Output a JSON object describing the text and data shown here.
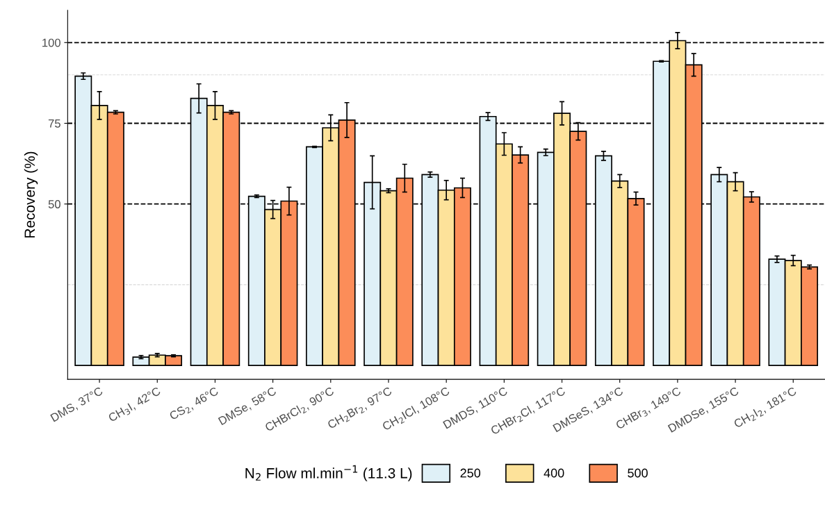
{
  "chart_data": {
    "type": "bar",
    "ylabel": "Recovery (%)",
    "legend_title": "N$_{2}$ Flow ml.min$^{−1}$ (11.3 L)",
    "categories": [
      "DMS, 37°C",
      "CH$_{3}$I, 42°C",
      "CS$_{2}$, 46°C",
      "DMSe, 58°C",
      "CHBrCl$_{2}$, 90°C",
      "CH$_{2}$Br$_{2}$, 97°C",
      "CH$_{2}$ICl, 108°C",
      "DMDS, 110°C",
      "CHBr$_{2}$Cl, 117°C",
      "DMSeS, 134°C",
      "CHBr$_{3}$, 149°C",
      "DMDSe, 155°C",
      "CH$_{2}$I$_{2}$, 181°C"
    ],
    "series": [
      {
        "name": "250",
        "color": "#dff0f7",
        "values": [
          89.6,
          2.6,
          82.7,
          52.4,
          67.7,
          56.7,
          59.1,
          77.1,
          66.0,
          64.9,
          94.2,
          59.1,
          32.9
        ],
        "errors": [
          1.0,
          0.5,
          4.5,
          0.4,
          0.2,
          8.2,
          0.8,
          1.2,
          1.0,
          1.4,
          0.2,
          2.2,
          1.0
        ]
      },
      {
        "name": "400",
        "color": "#fde29a",
        "values": [
          80.5,
          3.2,
          80.5,
          48.3,
          73.6,
          54.1,
          54.3,
          68.6,
          78.1,
          57.1,
          100.6,
          56.9,
          32.5
        ],
        "errors": [
          4.3,
          0.5,
          4.3,
          2.8,
          4.0,
          0.6,
          3.0,
          3.5,
          3.6,
          2.0,
          2.5,
          2.8,
          1.6
        ]
      },
      {
        "name": "500",
        "color": "#fc8d59",
        "values": [
          78.4,
          3.0,
          78.4,
          50.9,
          76.0,
          58.0,
          55.0,
          65.2,
          72.5,
          51.7,
          93.1,
          52.2,
          30.5
        ],
        "errors": [
          0.5,
          0.3,
          0.5,
          4.3,
          5.4,
          4.3,
          3.0,
          2.5,
          2.7,
          2.0,
          3.5,
          1.6,
          0.6
        ]
      }
    ],
    "ylim": [
      -4.3,
      110
    ],
    "yticks": [
      50,
      75,
      100
    ],
    "grid": "y",
    "legend": "bottom",
    "ref_lines": [
      {
        "axis": "y",
        "value": 25,
        "color": "#d9d9d9",
        "line_style": "dashed"
      },
      {
        "axis": "y",
        "value": 90,
        "color": "#d9d9d9",
        "line_style": "dashed"
      }
    ]
  }
}
